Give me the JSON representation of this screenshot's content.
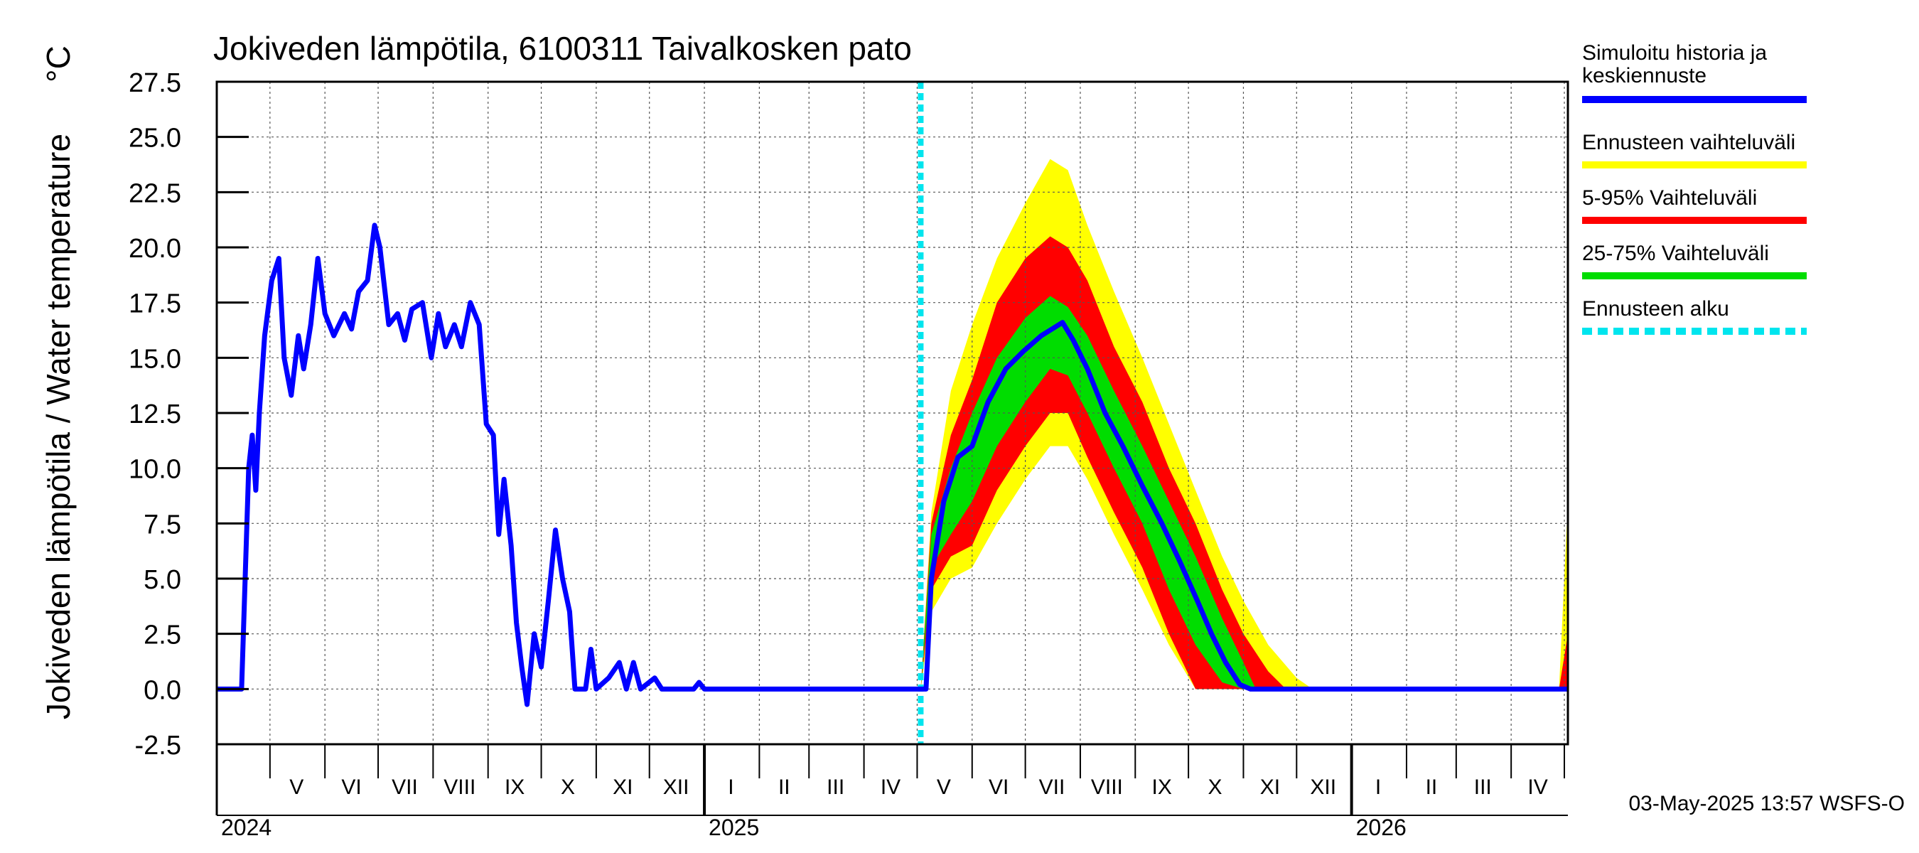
{
  "chart_data": {
    "type": "area",
    "title": "Jokiveden lämpötila, 6100311 Taivalkosken pato",
    "ylabel": "Jokiveden lämpötila / Water temperature",
    "yunit": "°C",
    "ylim": [
      -2.5,
      27.5
    ],
    "yticks": [
      "27.5",
      "25.0",
      "22.5",
      "20.0",
      "17.5",
      "15.0",
      "12.5",
      "10.0",
      "7.5",
      "5.0",
      "2.5",
      "0.0",
      "-2.5"
    ],
    "xlim": [
      "2024-04-01",
      "2026-05-03"
    ],
    "grid": true,
    "month_labels": [
      {
        "label": "V",
        "date": "2024-05-16"
      },
      {
        "label": "VI",
        "date": "2024-06-16"
      },
      {
        "label": "VII",
        "date": "2024-07-16"
      },
      {
        "label": "VIII",
        "date": "2024-08-16"
      },
      {
        "label": "IX",
        "date": "2024-09-16"
      },
      {
        "label": "X",
        "date": "2024-10-16"
      },
      {
        "label": "XI",
        "date": "2024-11-16"
      },
      {
        "label": "XII",
        "date": "2024-12-16"
      },
      {
        "label": "I",
        "date": "2025-01-16"
      },
      {
        "label": "II",
        "date": "2025-02-15"
      },
      {
        "label": "III",
        "date": "2025-03-16"
      },
      {
        "label": "IV",
        "date": "2025-04-16"
      },
      {
        "label": "V",
        "date": "2025-05-16"
      },
      {
        "label": "VI",
        "date": "2025-06-16"
      },
      {
        "label": "VII",
        "date": "2025-07-16"
      },
      {
        "label": "VIII",
        "date": "2025-08-16"
      },
      {
        "label": "IX",
        "date": "2025-09-16"
      },
      {
        "label": "X",
        "date": "2025-10-16"
      },
      {
        "label": "XI",
        "date": "2025-11-16"
      },
      {
        "label": "XII",
        "date": "2025-12-16"
      },
      {
        "label": "I",
        "date": "2026-01-16"
      },
      {
        "label": "II",
        "date": "2026-02-15"
      },
      {
        "label": "III",
        "date": "2026-03-16"
      },
      {
        "label": "IV",
        "date": "2026-04-16"
      }
    ],
    "year_labels": [
      {
        "label": "2024",
        "date": "2024-04-01"
      },
      {
        "label": "2025",
        "date": "2025-01-01"
      },
      {
        "label": "2026",
        "date": "2026-01-01"
      }
    ],
    "forecast_start": "2025-05-03",
    "series": [
      {
        "name": "Simuloitu historia ja keskiennuste",
        "color": "#0000ff",
        "points": [
          [
            "2024-04-01",
            0
          ],
          [
            "2024-04-15",
            0
          ],
          [
            "2024-04-17",
            5
          ],
          [
            "2024-04-19",
            10
          ],
          [
            "2024-04-21",
            11.5
          ],
          [
            "2024-04-23",
            9
          ],
          [
            "2024-04-25",
            12.5
          ],
          [
            "2024-04-28",
            16
          ],
          [
            "2024-05-02",
            18.5
          ],
          [
            "2024-05-06",
            19.5
          ],
          [
            "2024-05-09",
            15
          ],
          [
            "2024-05-13",
            13.3
          ],
          [
            "2024-05-17",
            16
          ],
          [
            "2024-05-20",
            14.5
          ],
          [
            "2024-05-24",
            16.5
          ],
          [
            "2024-05-28",
            19.5
          ],
          [
            "2024-06-01",
            17
          ],
          [
            "2024-06-06",
            16
          ],
          [
            "2024-06-12",
            17
          ],
          [
            "2024-06-16",
            16.3
          ],
          [
            "2024-06-20",
            18
          ],
          [
            "2024-06-25",
            18.5
          ],
          [
            "2024-06-29",
            21
          ],
          [
            "2024-07-02",
            20
          ],
          [
            "2024-07-07",
            16.5
          ],
          [
            "2024-07-12",
            17
          ],
          [
            "2024-07-16",
            15.8
          ],
          [
            "2024-07-20",
            17.2
          ],
          [
            "2024-07-26",
            17.5
          ],
          [
            "2024-07-31",
            15
          ],
          [
            "2024-08-04",
            17
          ],
          [
            "2024-08-08",
            15.5
          ],
          [
            "2024-08-13",
            16.5
          ],
          [
            "2024-08-17",
            15.5
          ],
          [
            "2024-08-22",
            17.5
          ],
          [
            "2024-08-27",
            16.5
          ],
          [
            "2024-08-31",
            12
          ],
          [
            "2024-09-04",
            11.5
          ],
          [
            "2024-09-07",
            7
          ],
          [
            "2024-09-10",
            9.5
          ],
          [
            "2024-09-14",
            6.5
          ],
          [
            "2024-09-17",
            3
          ],
          [
            "2024-09-20",
            1
          ],
          [
            "2024-09-23",
            -0.7
          ],
          [
            "2024-09-27",
            2.5
          ],
          [
            "2024-10-01",
            1
          ],
          [
            "2024-10-05",
            4
          ],
          [
            "2024-10-09",
            7.2
          ],
          [
            "2024-10-13",
            5
          ],
          [
            "2024-10-17",
            3.5
          ],
          [
            "2024-10-20",
            0
          ],
          [
            "2024-10-26",
            0
          ],
          [
            "2024-10-29",
            1.8
          ],
          [
            "2024-11-01",
            0
          ],
          [
            "2024-11-08",
            0.5
          ],
          [
            "2024-11-14",
            1.2
          ],
          [
            "2024-11-18",
            0
          ],
          [
            "2024-11-22",
            1.2
          ],
          [
            "2024-11-26",
            0
          ],
          [
            "2024-12-04",
            0.5
          ],
          [
            "2024-12-08",
            0
          ],
          [
            "2024-12-26",
            0
          ],
          [
            "2024-12-29",
            0.3
          ],
          [
            "2025-01-01",
            0
          ],
          [
            "2025-05-06",
            0
          ],
          [
            "2025-05-09",
            5
          ],
          [
            "2025-05-16",
            8.5
          ],
          [
            "2025-05-24",
            10.5
          ],
          [
            "2025-06-01",
            11
          ],
          [
            "2025-06-10",
            13
          ],
          [
            "2025-06-20",
            14.5
          ],
          [
            "2025-06-30",
            15.3
          ],
          [
            "2025-07-10",
            16
          ],
          [
            "2025-07-16",
            16.3
          ],
          [
            "2025-07-22",
            16.6
          ],
          [
            "2025-07-28",
            15.8
          ],
          [
            "2025-08-05",
            14.5
          ],
          [
            "2025-08-15",
            12.5
          ],
          [
            "2025-08-25",
            11
          ],
          [
            "2025-09-05",
            9.2
          ],
          [
            "2025-09-16",
            7.5
          ],
          [
            "2025-09-26",
            5.8
          ],
          [
            "2025-10-06",
            4
          ],
          [
            "2025-10-14",
            2.5
          ],
          [
            "2025-10-22",
            1.2
          ],
          [
            "2025-10-30",
            0.2
          ],
          [
            "2025-11-05",
            0
          ],
          [
            "2026-05-03",
            0
          ]
        ]
      },
      {
        "name": "Ennusteen vaihteluväli",
        "color": "#ffff00",
        "band": [
          [
            "2025-05-03",
            0,
            0
          ],
          [
            "2025-05-09",
            3.5,
            8
          ],
          [
            "2025-05-20",
            5,
            13.5
          ],
          [
            "2025-06-01",
            5.5,
            16.5
          ],
          [
            "2025-06-15",
            7.5,
            19.5
          ],
          [
            "2025-07-01",
            9.5,
            22
          ],
          [
            "2025-07-15",
            11,
            24
          ],
          [
            "2025-07-25",
            11,
            23.5
          ],
          [
            "2025-08-05",
            9.5,
            21
          ],
          [
            "2025-08-20",
            7,
            18
          ],
          [
            "2025-09-05",
            4.5,
            15
          ],
          [
            "2025-09-20",
            2,
            12
          ],
          [
            "2025-10-05",
            0,
            9
          ],
          [
            "2025-10-20",
            0,
            6
          ],
          [
            "2025-11-01",
            0,
            4
          ],
          [
            "2025-11-15",
            0,
            2
          ],
          [
            "2025-12-01",
            0,
            0.5
          ],
          [
            "2025-12-10",
            0,
            0
          ],
          [
            "2026-04-28",
            0,
            0
          ],
          [
            "2026-05-03",
            0,
            8.5
          ]
        ]
      },
      {
        "name": "5-95% Vaihteluväli",
        "color": "#ff0000",
        "band": [
          [
            "2025-05-03",
            0,
            0
          ],
          [
            "2025-05-09",
            4.5,
            7.5
          ],
          [
            "2025-05-20",
            6,
            11.5
          ],
          [
            "2025-06-01",
            6.5,
            14
          ],
          [
            "2025-06-15",
            9,
            17.5
          ],
          [
            "2025-07-01",
            11,
            19.5
          ],
          [
            "2025-07-15",
            12.5,
            20.5
          ],
          [
            "2025-07-25",
            12.5,
            20
          ],
          [
            "2025-08-05",
            10.5,
            18.5
          ],
          [
            "2025-08-20",
            8,
            15.5
          ],
          [
            "2025-09-05",
            5.5,
            13
          ],
          [
            "2025-09-20",
            2.5,
            10
          ],
          [
            "2025-10-05",
            0,
            7.5
          ],
          [
            "2025-10-20",
            0,
            4.5
          ],
          [
            "2025-11-01",
            0,
            2.5
          ],
          [
            "2025-11-15",
            0,
            0.8
          ],
          [
            "2025-11-25",
            0,
            0
          ],
          [
            "2026-04-28",
            0,
            0
          ],
          [
            "2026-05-03",
            0,
            2.5
          ]
        ]
      },
      {
        "name": "25-75% Vaihteluväli",
        "color": "#00dd00",
        "band": [
          [
            "2025-05-03",
            0,
            0
          ],
          [
            "2025-05-09",
            5.5,
            7
          ],
          [
            "2025-05-20",
            7,
            10
          ],
          [
            "2025-06-01",
            8.5,
            12.5
          ],
          [
            "2025-06-15",
            11,
            15
          ],
          [
            "2025-07-01",
            13,
            16.8
          ],
          [
            "2025-07-15",
            14.5,
            17.8
          ],
          [
            "2025-07-25",
            14.2,
            17.3
          ],
          [
            "2025-08-05",
            12.5,
            16
          ],
          [
            "2025-08-20",
            10,
            13.5
          ],
          [
            "2025-09-05",
            7.5,
            11
          ],
          [
            "2025-09-20",
            4.5,
            8.5
          ],
          [
            "2025-10-05",
            2,
            6
          ],
          [
            "2025-10-20",
            0.3,
            3.2
          ],
          [
            "2025-11-01",
            0,
            1.2
          ],
          [
            "2025-11-08",
            0,
            0
          ],
          [
            "2026-05-03",
            0,
            0
          ]
        ]
      },
      {
        "name": "Ennusteen alku",
        "color": "#00e5ee"
      }
    ]
  },
  "legend": {
    "items": [
      {
        "label": "Simuloitu historia ja keskiennuste",
        "line1": "Simuloitu historia ja",
        "line2": "keskiennuste",
        "color": "#0000ff",
        "style": "solid"
      },
      {
        "label": "Ennusteen vaihteluväli",
        "color": "#ffff00",
        "style": "solid"
      },
      {
        "label": "5-95% Vaihteluväli",
        "color": "#ff0000",
        "style": "solid"
      },
      {
        "label": "25-75% Vaihteluväli",
        "color": "#00dd00",
        "style": "solid"
      },
      {
        "label": "Ennusteen alku",
        "color": "#00e5ee",
        "style": "dashed"
      }
    ]
  },
  "footer": {
    "timestamp": "03-May-2025 13:57 WSFS-O"
  }
}
